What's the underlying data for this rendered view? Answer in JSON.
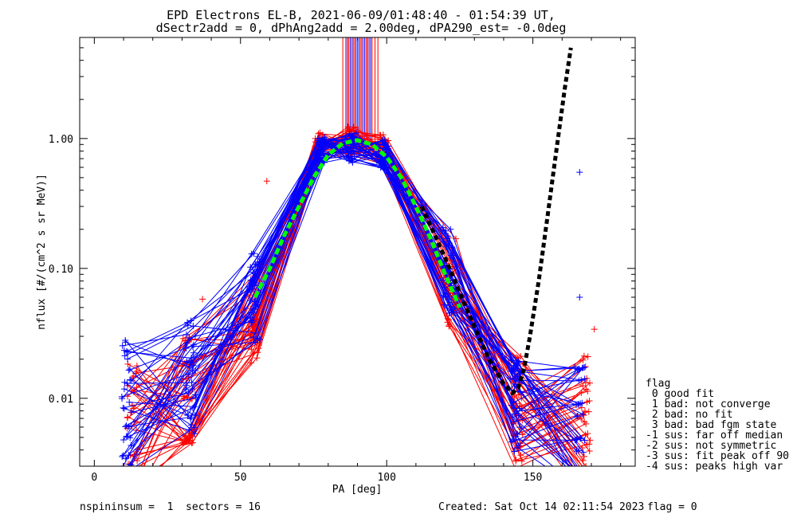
{
  "chart_data": {
    "type": "scatter",
    "title_line1": "EPD Electrons EL-B, 2021-06-09/01:48:40 - 01:54:39 UT,",
    "title_line2": "dSectr2add = 0, dPhAng2add = 2.00deg, dPA290_est=  -0.0deg",
    "xlabel": "PA [deg]",
    "ylabel": "nflux [#/(cm^2 s sr MeV)]",
    "xlim": [
      -5,
      185
    ],
    "ylim": [
      0.003,
      6
    ],
    "yscale": "log",
    "xticks": [
      0,
      50,
      100,
      150
    ],
    "xtick_labels": [
      "0",
      "50",
      "100",
      "150"
    ],
    "yticks": [
      0.01,
      0.1,
      1.0
    ],
    "ytick_labels": [
      "0.01",
      "0.10",
      "1.00"
    ],
    "colors": {
      "red": "#ff0000",
      "blue": "#0000ff",
      "green": "#00ff00",
      "black": "#000000"
    },
    "series": [
      {
        "name": "",
        "color": "red",
        "style": "line+plus",
        "x": [
          13,
          32,
          55,
          77,
          88,
          99,
          122,
          145,
          168
        ],
        "y": [
          0.006,
          0.012,
          0.04,
          0.85,
          0.95,
          0.82,
          0.08,
          0.008,
          0.006
        ]
      },
      {
        "name": "",
        "color": "blue",
        "style": "line+plus",
        "x": [
          11,
          33,
          55,
          78,
          88,
          99,
          121,
          144,
          166
        ],
        "y": [
          0.008,
          0.015,
          0.06,
          0.78,
          0.85,
          0.75,
          0.1,
          0.01,
          0.007
        ]
      },
      {
        "name": "",
        "color": "green",
        "style": "dashed",
        "x": [
          55,
          60,
          65,
          70,
          75,
          80,
          85,
          90,
          95,
          100,
          105,
          110,
          115,
          120,
          125
        ],
        "y": [
          0.06,
          0.1,
          0.18,
          0.3,
          0.5,
          0.75,
          0.92,
          0.97,
          0.9,
          0.72,
          0.5,
          0.3,
          0.17,
          0.09,
          0.05
        ]
      },
      {
        "name": "",
        "color": "black",
        "style": "dashed",
        "x": [
          112,
          120,
          128,
          135,
          140,
          143,
          145,
          147,
          149,
          152,
          155,
          158,
          161,
          163
        ],
        "y": [
          0.3,
          0.12,
          0.045,
          0.02,
          0.013,
          0.011,
          0.012,
          0.017,
          0.03,
          0.08,
          0.25,
          0.8,
          2.5,
          5.0
        ]
      }
    ],
    "vertical_lines": {
      "red_x": [
        85,
        86,
        87,
        88,
        89,
        90,
        91,
        92,
        93,
        94,
        95,
        96,
        97
      ],
      "blue_x": [
        86.5,
        87.5,
        88.5,
        89.5,
        90.5,
        91.5,
        92.5,
        93.5,
        94.5
      ],
      "from_y": 0.9
    },
    "outliers": [
      {
        "color": "blue",
        "x": 166,
        "y": 0.55
      },
      {
        "color": "red",
        "x": 59,
        "y": 0.47
      },
      {
        "color": "red",
        "x": 37,
        "y": 0.058
      },
      {
        "color": "red",
        "x": 171,
        "y": 0.034
      },
      {
        "color": "blue",
        "x": 166,
        "y": 0.06
      }
    ],
    "legend": {
      "placement": "right",
      "title": "flag",
      "items": [
        " 0 good fit",
        " 1 bad: not converge",
        " 2 bad: no fit",
        " 3 bad: bad fgm state",
        "-1 sus: far off median",
        "-2 sus: not symmetric",
        "-3 sus: fit peak off 90",
        "-4 sus: peaks high var"
      ]
    }
  },
  "footer": {
    "left": "nspininsum =  1  sectors = 16",
    "created": "Created: Sat Oct 14 02:11:54 2023",
    "flag": "flag = 0"
  }
}
